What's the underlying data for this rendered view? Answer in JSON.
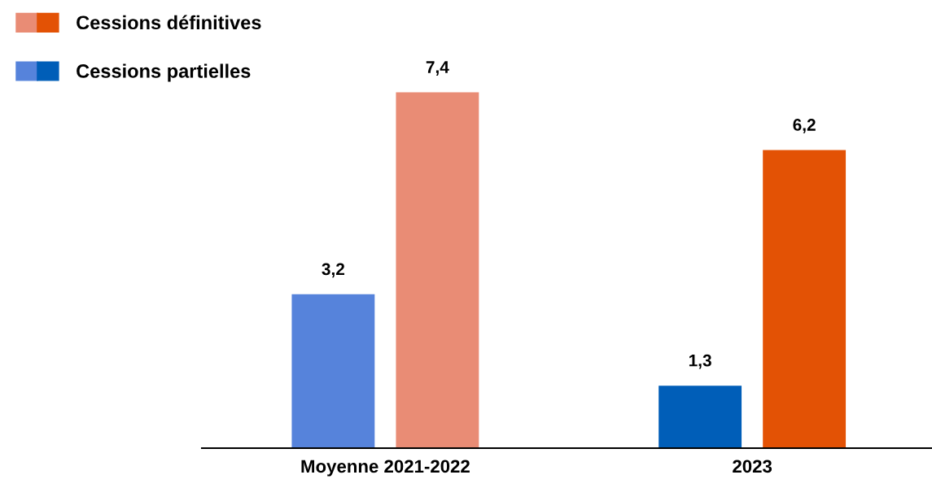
{
  "chart_data": {
    "type": "bar",
    "categories": [
      "Moyenne 2021-2022",
      "2023"
    ],
    "series": [
      {
        "name": "Cessions partielles",
        "colors": [
          "#5683db",
          "#005eb8"
        ],
        "values": [
          3.2,
          1.3
        ],
        "value_labels": [
          "3,2",
          "1,3"
        ]
      },
      {
        "name": "Cessions définitives",
        "colors": [
          "#e98c75",
          "#e35205"
        ],
        "values": [
          7.4,
          6.2
        ],
        "value_labels": [
          "7,4",
          "6,2"
        ]
      }
    ],
    "legend": "top left",
    "grid": false,
    "tick_labels": "x"
  }
}
